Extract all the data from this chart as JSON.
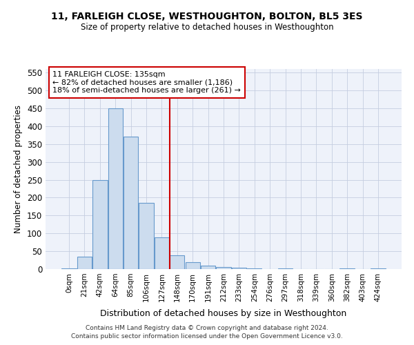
{
  "title": "11, FARLEIGH CLOSE, WESTHOUGHTON, BOLTON, BL5 3ES",
  "subtitle": "Size of property relative to detached houses in Westhoughton",
  "xlabel": "Distribution of detached houses by size in Westhoughton",
  "ylabel": "Number of detached properties",
  "bar_color": "#ccdcee",
  "bar_edge_color": "#6699cc",
  "bar_categories": [
    "0sqm",
    "21sqm",
    "42sqm",
    "64sqm",
    "85sqm",
    "106sqm",
    "127sqm",
    "148sqm",
    "170sqm",
    "191sqm",
    "212sqm",
    "233sqm",
    "254sqm",
    "276sqm",
    "297sqm",
    "318sqm",
    "339sqm",
    "360sqm",
    "382sqm",
    "403sqm",
    "424sqm"
  ],
  "bar_values": [
    2,
    35,
    250,
    450,
    370,
    185,
    88,
    38,
    20,
    10,
    5,
    3,
    1,
    0,
    2,
    0,
    0,
    0,
    1,
    0,
    1
  ],
  "ylim": [
    0,
    560
  ],
  "yticks": [
    0,
    50,
    100,
    150,
    200,
    250,
    300,
    350,
    400,
    450,
    500,
    550
  ],
  "vline_index": 7,
  "vline_color": "#cc0000",
  "annotation_title": "11 FARLEIGH CLOSE: 135sqm",
  "annotation_line1": "← 82% of detached houses are smaller (1,186)",
  "annotation_line2": "18% of semi-detached houses are larger (261) →",
  "annotation_box_color": "#ffffff",
  "annotation_box_edge_color": "#cc0000",
  "plot_bg_color": "#eef2fa",
  "grid_color": "#c5cde0",
  "footer1": "Contains HM Land Registry data © Crown copyright and database right 2024.",
  "footer2": "Contains public sector information licensed under the Open Government Licence v3.0."
}
